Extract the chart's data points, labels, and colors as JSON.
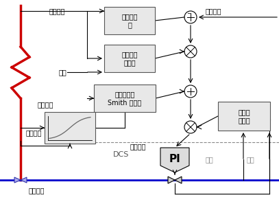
{
  "bg_color": "#ffffff",
  "line_color": "#000000",
  "red_pipe_color": "#cc0000",
  "blue_pipe_color": "#0000cc",
  "box_fill": "#e8e8e8",
  "box_edge": "#555555",
  "texts": {
    "shiji_wendu": "实际温度",
    "zhuangtai_guance": "状态观测\n器",
    "rong_zhi_bianzeng": "熔值变增\n益控制",
    "yali": "压力",
    "jiyu_moxing": "基于模型的\nSmith 预估器",
    "shuxue_moxing": "数学模型",
    "daiqian_wendu": "导前温度",
    "rukou_wendu": "入口温度",
    "wendu_sheding": "温度设定",
    "youhua_ruanjian": "优化软件",
    "dcs": "DCS",
    "zixuexi": "自学习\n功能块",
    "kaidu": "开度",
    "liuliang": "流量",
    "pi": "PI"
  },
  "fig_width": 4.07,
  "fig_height": 2.94,
  "dpi": 100
}
